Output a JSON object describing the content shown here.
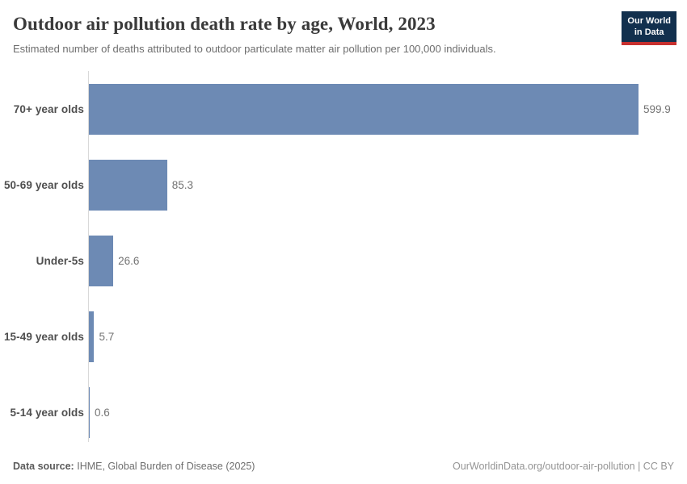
{
  "header": {
    "title": "Outdoor air pollution death rate by age, World, 2023",
    "subtitle": "Estimated number of deaths attributed to outdoor particulate matter air pollution per 100,000 individuals.",
    "logo": {
      "line1": "Our World",
      "line2": "in Data"
    }
  },
  "chart_data": {
    "type": "bar",
    "orientation": "horizontal",
    "title": "Outdoor air pollution death rate by age, World, 2023",
    "subtitle": "Estimated number of deaths attributed to outdoor particulate matter air pollution per 100,000 individuals.",
    "categories": [
      "70+ year olds",
      "50-69 year olds",
      "Under-5s",
      "15-49 year olds",
      "5-14 year olds"
    ],
    "values": [
      599.9,
      85.3,
      26.6,
      5.7,
      0.6
    ],
    "value_labels": [
      "599.9",
      "85.3",
      "26.6",
      "5.7",
      "0.6"
    ],
    "xlim": [
      0,
      600
    ],
    "grid": false,
    "legend": "none",
    "bar_color": "#6d8ab4"
  },
  "colors": {
    "bar": "#6d8ab4",
    "logo_bg": "#12304e",
    "logo_accent": "#c7302f",
    "axis_line": "#d9d9d9"
  },
  "footer": {
    "datasource_label": "Data source:",
    "datasource_value": "IHME, Global Burden of Disease (2025)",
    "link": "OurWorldinData.org/outdoor-air-pollution | CC BY"
  }
}
